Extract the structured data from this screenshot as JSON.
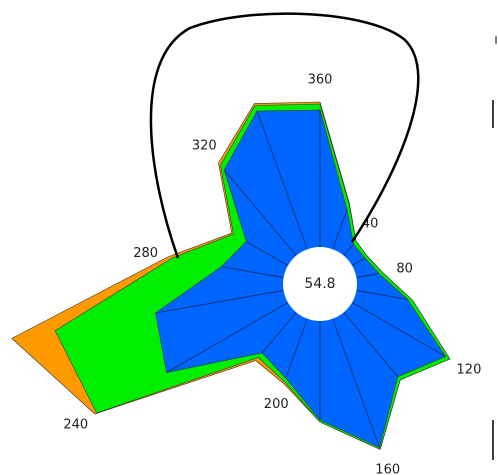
{
  "chart_data": {
    "type": "polar-area",
    "center_label": "54.8",
    "x": [
      0,
      20,
      40,
      60,
      80,
      100,
      120,
      140,
      160,
      180,
      200,
      220,
      240,
      260,
      280,
      300,
      320,
      340
    ],
    "xticks": [
      {
        "value": 0,
        "label": "360"
      },
      40,
      80,
      120,
      160,
      200,
      240,
      280,
      320
    ],
    "rlim": [
      0,
      320
    ],
    "series": [
      {
        "color": "#ff9900",
        "values": [
          182,
          86,
          56,
          55,
          64,
          94,
          150,
          125,
          176,
          138,
          106,
          100,
          260,
          313,
          155,
          102,
          158,
          192
        ]
      },
      {
        "color": "#00ee00",
        "values": [
          180,
          85,
          56,
          55,
          64,
          94,
          150,
          125,
          176,
          138,
          104,
          96,
          258,
          269,
          150,
          100,
          155,
          190
        ]
      },
      {
        "color": "#0066ff",
        "values": [
          174,
          79,
          52,
          52,
          60,
          89,
          145,
          121,
          174,
          136,
          100,
          90,
          177,
          167,
          100,
          85,
          149,
          184
        ]
      }
    ]
  }
}
